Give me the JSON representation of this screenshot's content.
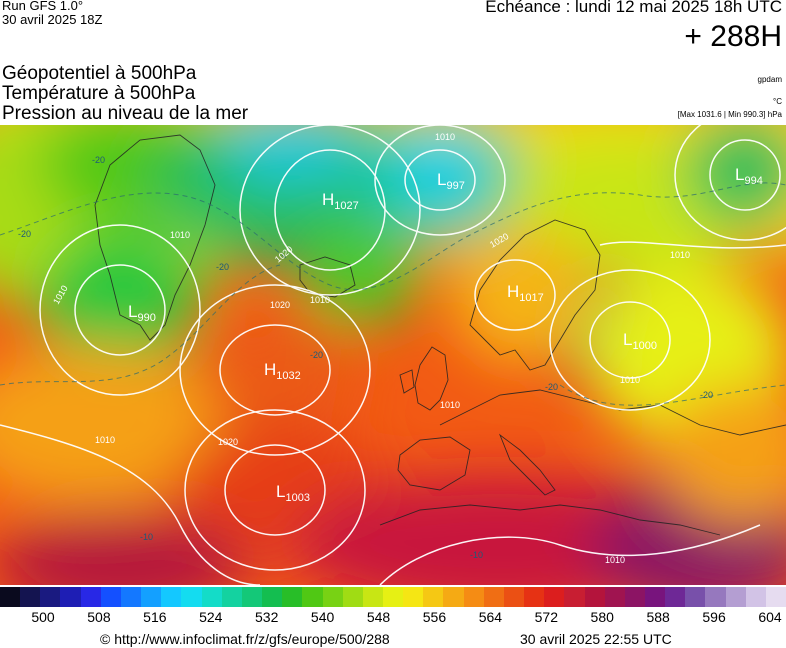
{
  "header": {
    "run": "Run GFS 1.0°",
    "run_date": "30 avril 2025 18Z",
    "echeance": "Echéance : lundi 12 mai 2025 18h UTC",
    "hours": "+ 288H"
  },
  "titles": [
    "Géopotentiel à 500hPa",
    "Température à 500hPa",
    "Pression au niveau de la mer"
  ],
  "units": {
    "gpdam": "gpdam",
    "celsius": "°C",
    "minmax": "[Max 1031.6 | Min 990.3] hPa"
  },
  "pressure_centers": [
    {
      "type": "H",
      "value": "1027"
    },
    {
      "type": "L",
      "value": "997"
    },
    {
      "type": "L",
      "value": "994"
    },
    {
      "type": "L",
      "value": "990"
    },
    {
      "type": "H",
      "value": "1032"
    },
    {
      "type": "H",
      "value": "1017"
    },
    {
      "type": "L",
      "value": "1000"
    },
    {
      "type": "L",
      "value": "1003"
    }
  ],
  "isobar_labels": [
    "1010",
    "1020",
    "1010",
    "1020",
    "1010",
    "1010",
    "1010",
    "1020",
    "1010",
    "1010",
    "1020",
    "1010",
    "1010"
  ],
  "temp_labels": [
    "-20",
    "-20",
    "-20",
    "-20",
    "-20",
    "-20",
    "-10",
    "-10"
  ],
  "scale": {
    "colors": [
      "#0a0a1e",
      "#141450",
      "#1a1a80",
      "#1e1eb4",
      "#2828e6",
      "#1450ff",
      "#1478ff",
      "#14a0ff",
      "#14c8ff",
      "#14dcf0",
      "#14dcc8",
      "#14d2a0",
      "#14c878",
      "#14be50",
      "#28be28",
      "#50c814",
      "#78d214",
      "#a0dc14",
      "#c8e614",
      "#e6f014",
      "#f5e614",
      "#f5c814",
      "#f5aa14",
      "#f58c14",
      "#f06e14",
      "#eb5014",
      "#e63214",
      "#dc1e1e",
      "#c81e32",
      "#b4143c",
      "#a01450",
      "#8c1464",
      "#78147d",
      "#6e2896",
      "#7850aa",
      "#9678be",
      "#b49ed2",
      "#d2c3e6",
      "#e6dcf0"
    ],
    "ticks": [
      "500",
      "508",
      "516",
      "524",
      "532",
      "540",
      "548",
      "556",
      "564",
      "572",
      "580",
      "588",
      "596",
      "604"
    ]
  },
  "footer": {
    "url": "© http://www.infoclimat.fr/z/gfs/europe/500/288",
    "date": "30 avril 2025 22:55 UTC"
  }
}
